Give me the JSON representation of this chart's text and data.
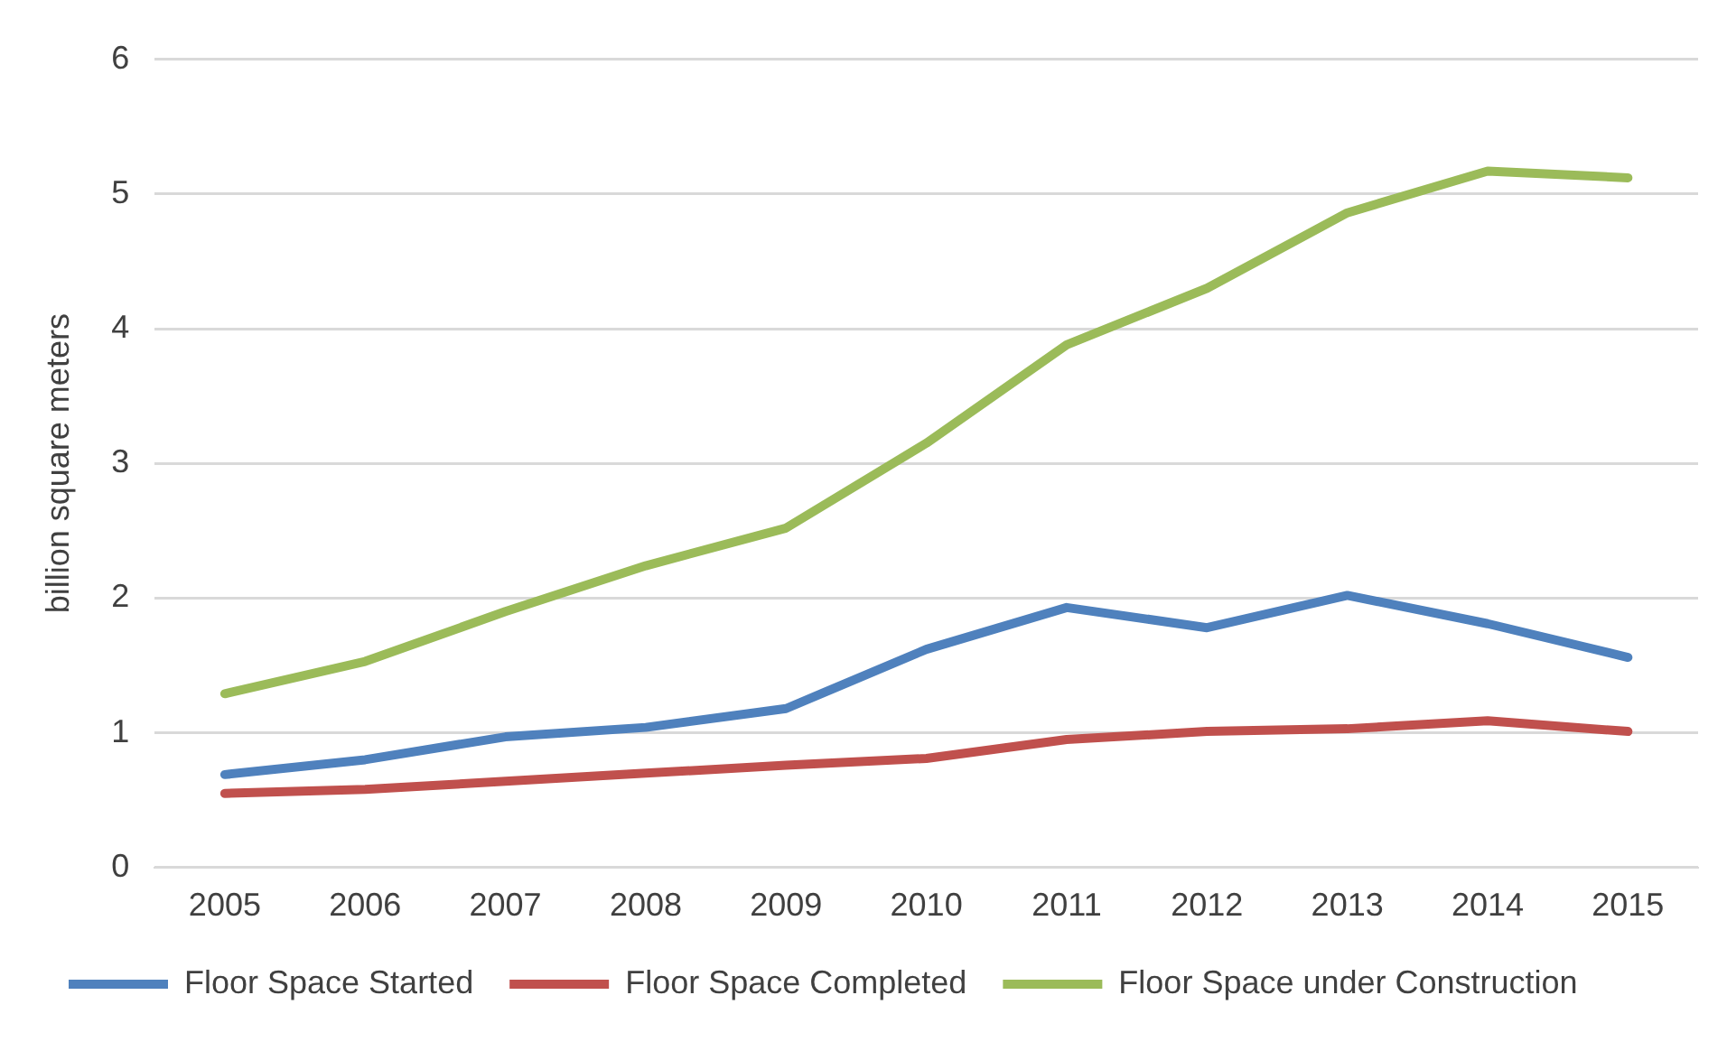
{
  "chart_data": {
    "type": "line",
    "ylabel": "billion square meters",
    "categories": [
      "2005",
      "2006",
      "2007",
      "2008",
      "2009",
      "2010",
      "2011",
      "2012",
      "2013",
      "2014",
      "2015"
    ],
    "series": [
      {
        "name": "Floor Space Started",
        "color": "#4f81bd",
        "values": [
          0.69,
          0.8,
          0.97,
          1.04,
          1.18,
          1.62,
          1.93,
          1.78,
          2.02,
          1.81,
          1.56
        ]
      },
      {
        "name": "Floor Space Completed",
        "color": "#c0504d",
        "values": [
          0.55,
          0.58,
          0.64,
          0.7,
          0.76,
          0.81,
          0.95,
          1.01,
          1.03,
          1.09,
          1.01
        ]
      },
      {
        "name": "Floor Space under Construction",
        "color": "#9bbb59",
        "values": [
          1.29,
          1.53,
          1.9,
          2.24,
          2.52,
          3.15,
          3.88,
          4.3,
          4.86,
          5.17,
          5.12
        ]
      }
    ],
    "ylim": [
      0,
      6
    ],
    "yticks": [
      0,
      1,
      2,
      3,
      4,
      5,
      6
    ],
    "grid": "y",
    "legend": "bottom",
    "marker": "none",
    "line_style": "solid"
  }
}
